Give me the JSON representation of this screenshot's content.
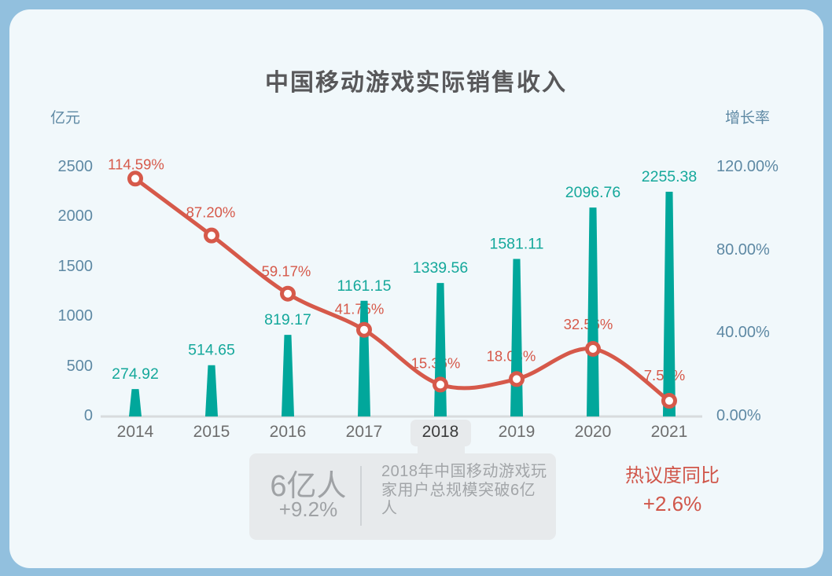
{
  "title": "中国移动游戏实际销售收入",
  "left_axis": {
    "name": "亿元",
    "ticks": [
      "2500",
      "2000",
      "1500",
      "1000",
      "500",
      "0"
    ]
  },
  "right_axis": {
    "name": "增长率",
    "ticks": [
      "120.00%",
      "80.00%",
      "40.00%",
      "0.00%"
    ]
  },
  "chart_data": {
    "type": "bar+line",
    "title": "中国移动游戏实际销售收入",
    "categories": [
      "2014",
      "2015",
      "2016",
      "2017",
      "2018",
      "2019",
      "2020",
      "2021"
    ],
    "series": [
      {
        "name": "实际销售收入",
        "type": "bar",
        "unit": "亿元",
        "color": "#01a79b",
        "values": [
          274.92,
          514.65,
          819.17,
          1161.15,
          1339.56,
          1581.11,
          2096.76,
          2255.38
        ],
        "labels": [
          "274.92",
          "514.65",
          "819.17",
          "1161.15",
          "1339.56",
          "1581.11",
          "2096.76",
          "2255.38"
        ]
      },
      {
        "name": "增长率",
        "type": "line",
        "color": "#d6594a",
        "values": [
          114.59,
          87.2,
          59.17,
          41.75,
          15.36,
          18.03,
          32.56,
          7.56
        ],
        "labels": [
          "114.59%",
          "87.20%",
          "59.17%",
          "41.75%",
          "15.36%",
          "18.03%",
          "32.56%",
          "7.56%"
        ]
      }
    ],
    "left_ylim": [
      0,
      2500
    ],
    "right_ylim": [
      0,
      120
    ],
    "highlight_category": "2018",
    "grid": false,
    "legend_position": "none"
  },
  "annotation": {
    "headline": "6亿人",
    "delta": "+9.2%",
    "description": "2018年中国移动游戏玩家用户总规模突破6亿人"
  },
  "hot_note": {
    "line1": "热议度同比",
    "line2": "+2.6%"
  },
  "colors": {
    "frame": "#92c0de",
    "card": "#f1f8fb",
    "bar": "#01a79b",
    "bar_label": "#15a89b",
    "line": "#d6594a",
    "axis_text": "#5e89a4",
    "title_text": "#58585a",
    "box": "#e7eaec",
    "box_text": "#a0a3a6",
    "note_red": "#d0564a",
    "axis_line": "#d8dbdd"
  }
}
